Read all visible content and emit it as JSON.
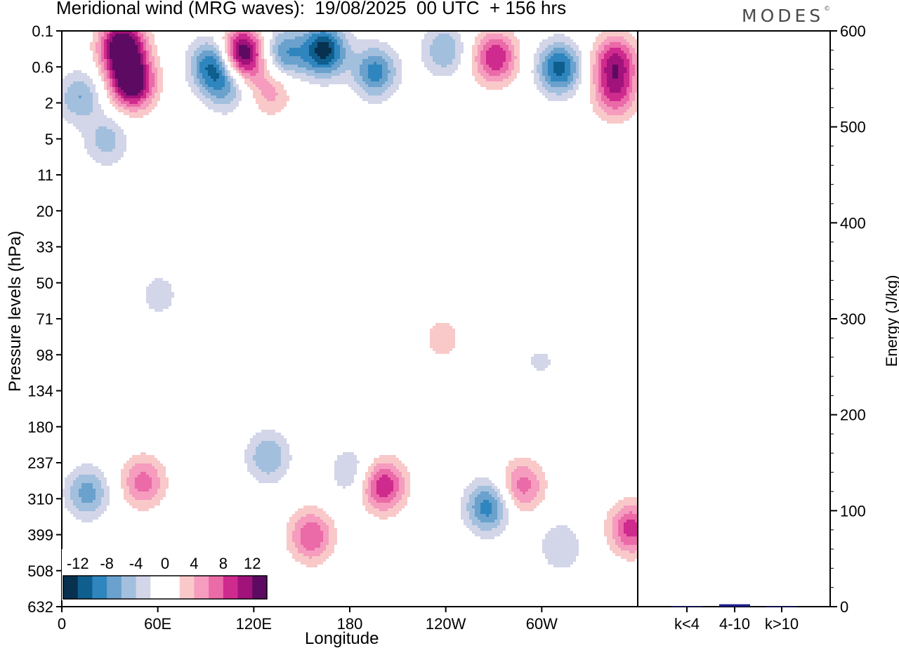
{
  "header": {
    "title": "Meridional wind (MRG waves):  19/08/2025  00 UTC  + 156 hrs",
    "brand": "MODES",
    "brand_mark": "©"
  },
  "chart_data": [
    {
      "type": "heatmap",
      "title": "Meridional wind (MRG waves):  19/08/2025  00 UTC  + 156 hrs",
      "xlabel": "Longitude",
      "ylabel": "Pressure levels (hPa)",
      "x_ticks": [
        "0",
        "60E",
        "120E",
        "180",
        "120W",
        "60W"
      ],
      "x_tick_degrees": [
        0,
        60,
        120,
        180,
        240,
        300
      ],
      "xlim": [
        0,
        360
      ],
      "y_ticks": [
        "0.1",
        "0.6",
        "2",
        "5",
        "11",
        "20",
        "33",
        "50",
        "71",
        "98",
        "134",
        "180",
        "237",
        "310",
        "399",
        "508",
        "632"
      ],
      "colorbar": {
        "labels": [
          "-12",
          "-8",
          "-4",
          "0",
          "4",
          "8",
          "12"
        ],
        "colors": [
          "#08304f",
          "#0e5e8e",
          "#2f86be",
          "#6aa1cd",
          "#a3bfde",
          "#d3d6e8",
          "#ffffff",
          "#ffffff",
          "#f9c9c9",
          "#f59cbf",
          "#eb6aa8",
          "#cf2a8d",
          "#a1127a",
          "#5c0a62"
        ]
      },
      "field_blobs": [
        {
          "lon": 37,
          "level_index": 0.4,
          "value": 16
        },
        {
          "lon": 43,
          "level_index": 1.4,
          "value": 15
        },
        {
          "lon": 93,
          "level_index": 0.9,
          "value": -10
        },
        {
          "lon": 102,
          "level_index": 1.5,
          "value": -6
        },
        {
          "lon": 112,
          "level_index": 0.6,
          "value": 15
        },
        {
          "lon": 163,
          "level_index": 0.5,
          "value": -13
        },
        {
          "lon": 138,
          "level_index": 0.6,
          "value": -8
        },
        {
          "lon": 195,
          "level_index": 1.1,
          "value": -9
        },
        {
          "lon": 238,
          "level_index": 0.5,
          "value": -6
        },
        {
          "lon": 270,
          "level_index": 0.7,
          "value": 10
        },
        {
          "lon": 310,
          "level_index": 1.0,
          "value": -11
        },
        {
          "lon": 345,
          "level_index": 0.8,
          "value": 10
        },
        {
          "lon": 345,
          "level_index": 1.7,
          "value": 8
        },
        {
          "lon": 10,
          "level_index": 1.8,
          "value": -6
        },
        {
          "lon": 27,
          "level_index": 3.0,
          "value": -5
        },
        {
          "lon": 130,
          "level_index": 1.6,
          "value": 5
        },
        {
          "lon": 60,
          "level_index": 7.3,
          "value": -3
        },
        {
          "lon": 135,
          "level_index": 7.1,
          "value": 2
        },
        {
          "lon": 20,
          "level_index": 8.1,
          "value": 2
        },
        {
          "lon": 302,
          "level_index": 8.3,
          "value": 2
        },
        {
          "lon": 15,
          "level_index": 12.8,
          "value": -7
        },
        {
          "lon": 50,
          "level_index": 12.5,
          "value": 7
        },
        {
          "lon": 128,
          "level_index": 11.8,
          "value": -6
        },
        {
          "lon": 155,
          "level_index": 14.0,
          "value": 8
        },
        {
          "lon": 180,
          "level_index": 12.2,
          "value": -4
        },
        {
          "lon": 200,
          "level_index": 12.6,
          "value": 10
        },
        {
          "lon": 265,
          "level_index": 13.2,
          "value": -9
        },
        {
          "lon": 287,
          "level_index": 12.6,
          "value": 7
        },
        {
          "lon": 311,
          "level_index": 14.3,
          "value": -4
        },
        {
          "lon": 355,
          "level_index": 13.8,
          "value": 9
        },
        {
          "lon": 237,
          "level_index": 8.5,
          "value": 3
        },
        {
          "lon": 299,
          "level_index": 9.0,
          "value": -3
        }
      ]
    },
    {
      "type": "bar",
      "ylabel": "Energy (J/kg)",
      "categories": [
        "k<4",
        "4-10",
        "k>10"
      ],
      "values": [
        0.5,
        2.5,
        0.3
      ],
      "ylim": [
        0,
        600
      ],
      "y_ticks": [
        "0",
        "100",
        "200",
        "300",
        "400",
        "500",
        "600"
      ],
      "bar_color": "#1c1c8c"
    }
  ]
}
